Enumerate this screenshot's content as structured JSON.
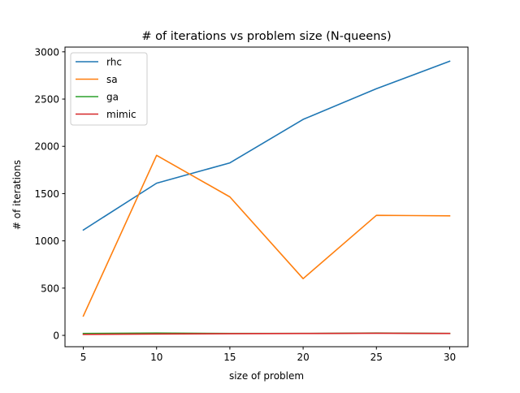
{
  "chart_data": {
    "type": "line",
    "title": "# of iterations vs problem size (N-queens)",
    "xlabel": "size of problem",
    "ylabel": "# of iterations",
    "x": [
      5,
      10,
      15,
      20,
      25,
      30
    ],
    "xticks": [
      5,
      10,
      15,
      20,
      25,
      30
    ],
    "yticks": [
      0,
      500,
      1000,
      1500,
      2000,
      2500,
      3000
    ],
    "xlim": [
      3.75,
      31.25
    ],
    "ylim": [
      -120,
      3050
    ],
    "grid": false,
    "legend_position": "upper left",
    "series": [
      {
        "name": "rhc",
        "color": "#1f77b4",
        "values": [
          1115,
          1610,
          1825,
          2285,
          2610,
          2900
        ]
      },
      {
        "name": "sa",
        "color": "#ff7f0e",
        "values": [
          205,
          1905,
          1465,
          600,
          1270,
          1265
        ]
      },
      {
        "name": "ga",
        "color": "#2ca02c",
        "values": [
          20,
          25,
          20,
          20,
          25,
          20
        ]
      },
      {
        "name": "mimic",
        "color": "#d62728",
        "values": [
          10,
          15,
          18,
          20,
          22,
          20
        ]
      }
    ]
  }
}
